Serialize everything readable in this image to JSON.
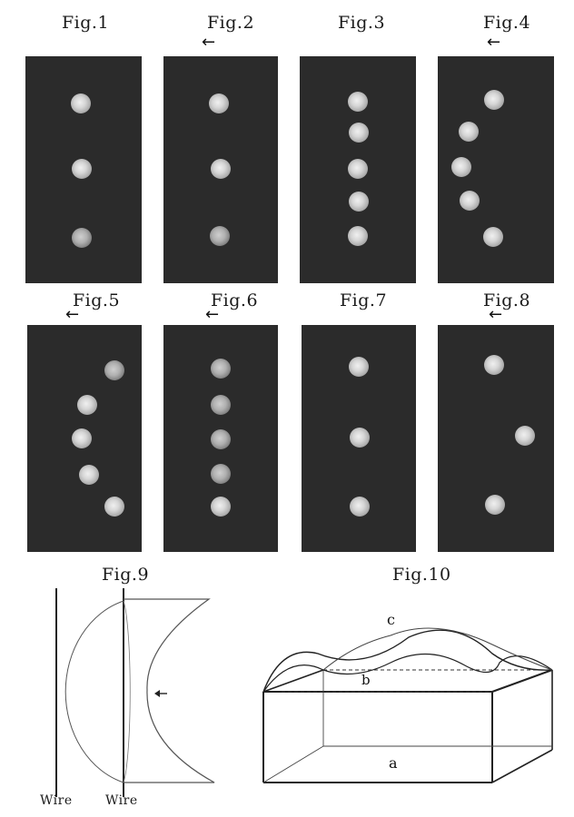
{
  "figures": {
    "fig1": {
      "label": "Fig.1",
      "arrow": ""
    },
    "fig2": {
      "label": "Fig.2",
      "arrow": "←"
    },
    "fig3": {
      "label": "Fig.3",
      "arrow": ""
    },
    "fig4": {
      "label": "Fig.4",
      "arrow": "←"
    },
    "fig5": {
      "label": "Fig.5",
      "arrow": "←"
    },
    "fig6": {
      "label": "Fig.6",
      "arrow": "←"
    },
    "fig7": {
      "label": "Fig.7",
      "arrow": ""
    },
    "fig8": {
      "label": "Fig.8",
      "arrow": "←"
    },
    "fig9": {
      "label": "Fig.9",
      "wire_left": "Wire",
      "wire_right": "Wire",
      "arrow": "←"
    },
    "fig10": {
      "label": "Fig.10",
      "label_a": "a",
      "label_b": "b",
      "label_c": "c"
    }
  },
  "colors": {
    "panel": "#2b2b2b",
    "spot": "#d6d6d6",
    "line": "#222222"
  },
  "spot_counts": {
    "fig1": 3,
    "fig2": 3,
    "fig3": 5,
    "fig4": 5,
    "fig5": 5,
    "fig6": 5,
    "fig7": 3,
    "fig8": 3
  }
}
